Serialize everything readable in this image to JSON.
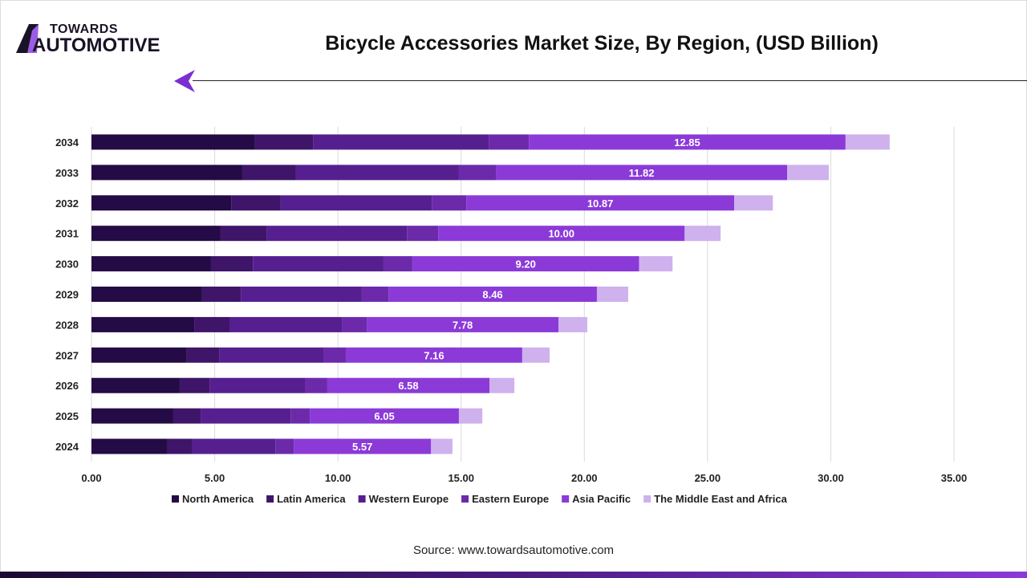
{
  "logo": {
    "line1": "TOWARDS",
    "line2": "AUTOMOTIVE"
  },
  "title": "Bicycle Accessories Market Size, By Region, (USD Billion)",
  "source": "Source: www.towardsautomotive.com",
  "chart_data": {
    "type": "bar",
    "orientation": "horizontal",
    "stacked": true,
    "title": "Bicycle Accessories Market Size, By Region, (USD Billion)",
    "categories": [
      "2024",
      "2025",
      "2026",
      "2027",
      "2028",
      "2029",
      "2030",
      "2031",
      "2032",
      "2033",
      "2034"
    ],
    "xlim": [
      0,
      35
    ],
    "xticks": [
      "0.00",
      "5.00",
      "10.00",
      "15.00",
      "20.00",
      "25.00",
      "30.00",
      "35.00"
    ],
    "grid": true,
    "legend_position": "bottom",
    "series": [
      {
        "name": "North America",
        "color": "#240b45",
        "values": [
          3.06,
          3.32,
          3.58,
          3.87,
          4.17,
          4.49,
          4.85,
          5.24,
          5.67,
          6.12,
          6.61
        ]
      },
      {
        "name": "Latin America",
        "color": "#3f1569",
        "values": [
          1.04,
          1.11,
          1.21,
          1.31,
          1.43,
          1.57,
          1.7,
          1.86,
          2.01,
          2.18,
          2.38
        ]
      },
      {
        "name": "Western Europe",
        "color": "#561f8f",
        "values": [
          3.36,
          3.65,
          3.9,
          4.23,
          4.56,
          4.91,
          5.3,
          5.7,
          6.13,
          6.61,
          7.13
        ]
      },
      {
        "name": "Eastern Europe",
        "color": "#6c2aab",
        "values": [
          0.75,
          0.78,
          0.88,
          0.91,
          1.01,
          1.08,
          1.17,
          1.27,
          1.4,
          1.5,
          1.63
        ]
      },
      {
        "name": "Asia Pacific",
        "color": "#8b3ad8",
        "values": [
          5.57,
          6.05,
          6.58,
          7.16,
          7.78,
          8.46,
          9.2,
          10.0,
          10.87,
          11.82,
          12.85
        ],
        "labels": [
          "5.57",
          "6.05",
          "6.58",
          "7.16",
          "7.78",
          "8.46",
          "9.20",
          "10.00",
          "10.87",
          "11.82",
          "12.85"
        ]
      },
      {
        "name": "The Middle East and Africa",
        "color": "#cfb1ee",
        "values": [
          0.87,
          0.95,
          1.01,
          1.11,
          1.17,
          1.27,
          1.36,
          1.46,
          1.57,
          1.69,
          1.79
        ]
      }
    ]
  }
}
